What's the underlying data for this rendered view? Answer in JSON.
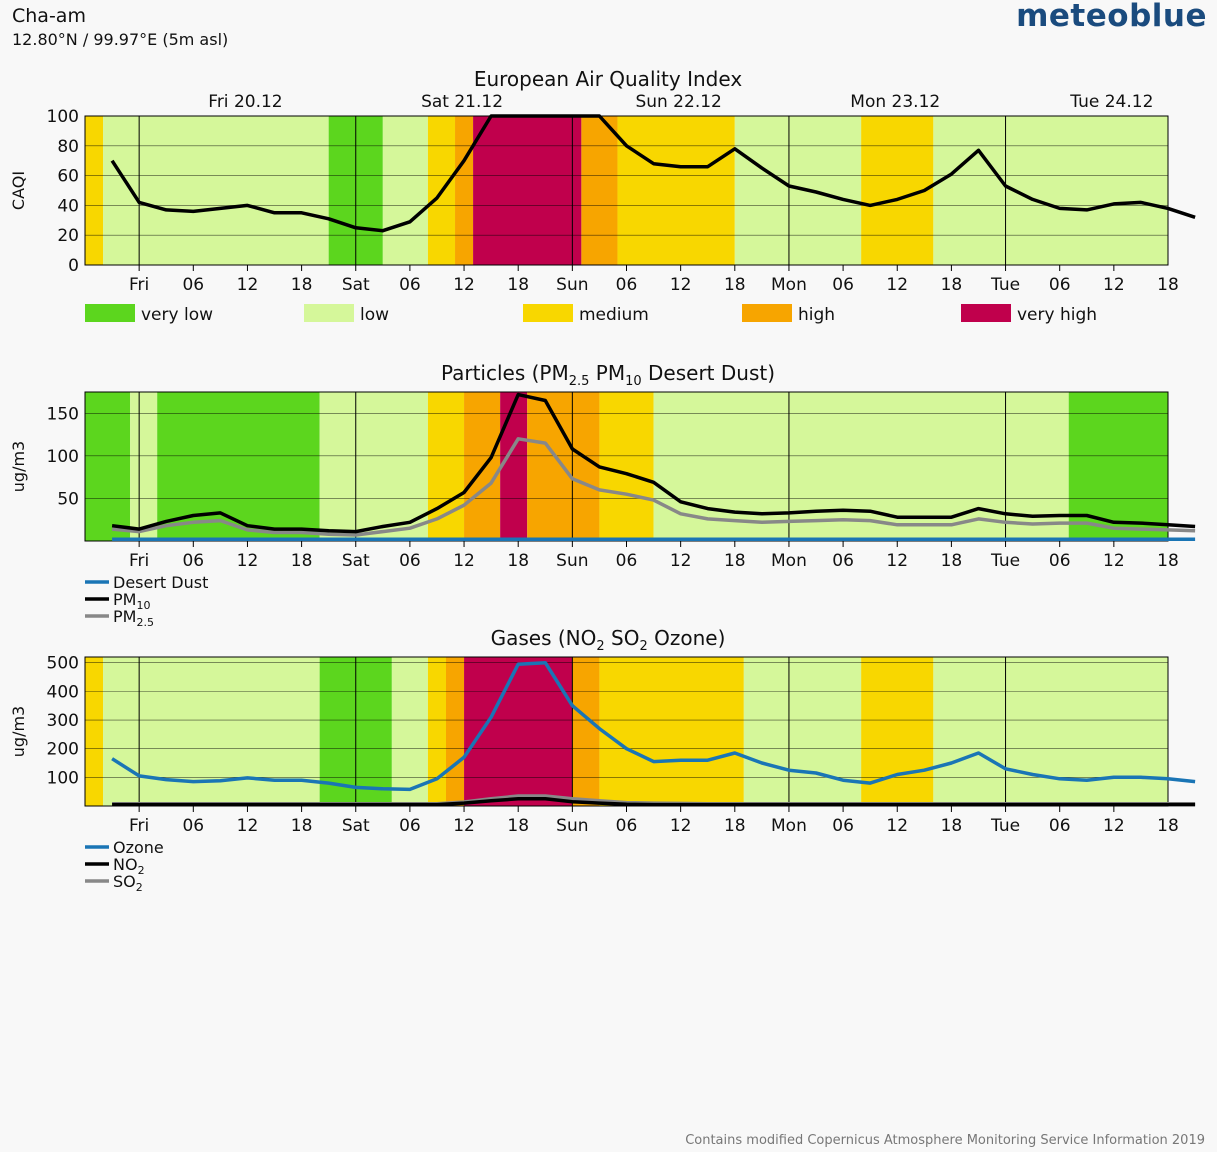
{
  "header": {
    "location_name": "Cha-am",
    "coords": "12.80°N / 99.97°E (5m asl)",
    "brand": "meteoblue"
  },
  "footer": {
    "credit": "Contains modified Copernicus Atmosphere Monitoring Service Information 2019"
  },
  "colors": {
    "very_low": "#5cd61e",
    "low": "#d5f79a",
    "medium": "#f8d700",
    "high": "#f7a500",
    "very_high": "#c0004c",
    "ozone": "#1a75b5",
    "black": "#000000",
    "grey": "#888888",
    "dust": "#1a75b5"
  },
  "day_labels": [
    "Fri 20.12",
    "Sat 21.12",
    "Sun 22.12",
    "Mon 23.12",
    "Tue 24.12"
  ],
  "x_tick_labels": [
    "Fri",
    "06",
    "12",
    "18",
    "Sat",
    "06",
    "12",
    "18",
    "Sun",
    "06",
    "12",
    "18",
    "Mon",
    "06",
    "12",
    "18",
    "Tue",
    "06",
    "12",
    "18"
  ],
  "legend_aqi": [
    "very low",
    "low",
    "medium",
    "high",
    "very high"
  ],
  "chart_data": [
    {
      "type": "line",
      "title": "European Air Quality Index",
      "ylabel": "CAQI",
      "ylim": [
        0,
        100
      ],
      "yticks": [
        0,
        20,
        40,
        60,
        80,
        100
      ],
      "x_hours": [
        -3,
        0,
        3,
        6,
        9,
        12,
        15,
        18,
        21,
        24,
        27,
        30,
        33,
        36,
        39,
        42,
        45,
        48,
        51,
        54,
        57,
        60,
        63,
        66,
        69,
        72,
        75,
        78,
        81,
        84,
        87,
        90,
        93,
        96,
        99,
        102,
        105,
        108,
        111,
        114,
        117
      ],
      "background_bands": [
        {
          "from": -6,
          "to": -4,
          "level": "medium"
        },
        {
          "from": -4,
          "to": 21,
          "level": "low"
        },
        {
          "from": 21,
          "to": 27,
          "level": "very_low"
        },
        {
          "from": 27,
          "to": 32,
          "level": "low"
        },
        {
          "from": 32,
          "to": 35,
          "level": "medium"
        },
        {
          "from": 35,
          "to": 37,
          "level": "high"
        },
        {
          "from": 37,
          "to": 49,
          "level": "very_high"
        },
        {
          "from": 49,
          "to": 53,
          "level": "high"
        },
        {
          "from": 53,
          "to": 66,
          "level": "medium"
        },
        {
          "from": 66,
          "to": 80,
          "level": "low"
        },
        {
          "from": 80,
          "to": 88,
          "level": "medium"
        },
        {
          "from": 88,
          "to": 114,
          "level": "low"
        }
      ],
      "series": [
        {
          "color": "black",
          "values": [
            null
          ]
        }
      ]
    },
    {
      "type": "line",
      "title": "Particles (PM2.5 PM10 Desert Dust)",
      "ylabel": "ug/m3",
      "ylim": [
        0,
        175
      ],
      "yticks": [
        50,
        100,
        150
      ],
      "legend": [
        "Desert Dust",
        "PM10",
        "PM2.5"
      ],
      "background_bands": [
        {
          "from": -6,
          "to": -1,
          "level": "very_low"
        },
        {
          "from": -1,
          "to": 2,
          "level": "low"
        },
        {
          "from": 2,
          "to": 20,
          "level": "very_low"
        },
        {
          "from": 20,
          "to": 32,
          "level": "low"
        },
        {
          "from": 32,
          "to": 36,
          "level": "medium"
        },
        {
          "from": 36,
          "to": 40,
          "level": "high"
        },
        {
          "from": 40,
          "to": 43,
          "level": "very_high"
        },
        {
          "from": 43,
          "to": 51,
          "level": "high"
        },
        {
          "from": 51,
          "to": 57,
          "level": "medium"
        },
        {
          "from": 57,
          "to": 103,
          "level": "low"
        },
        {
          "from": 103,
          "to": 114,
          "level": "very_low"
        }
      ]
    },
    {
      "type": "line",
      "title": "Gases (NO2 SO2 Ozone)",
      "ylabel": "ug/m3",
      "ylim": [
        0,
        520
      ],
      "yticks": [
        100,
        200,
        300,
        400,
        500
      ],
      "legend": [
        "Ozone",
        "NO2",
        "SO2"
      ],
      "background_bands": [
        {
          "from": -6,
          "to": -4,
          "level": "medium"
        },
        {
          "from": -4,
          "to": 20,
          "level": "low"
        },
        {
          "from": 20,
          "to": 28,
          "level": "very_low"
        },
        {
          "from": 28,
          "to": 32,
          "level": "low"
        },
        {
          "from": 32,
          "to": 34,
          "level": "medium"
        },
        {
          "from": 34,
          "to": 36,
          "level": "high"
        },
        {
          "from": 36,
          "to": 48,
          "level": "very_high"
        },
        {
          "from": 48,
          "to": 51,
          "level": "high"
        },
        {
          "from": 51,
          "to": 67,
          "level": "medium"
        },
        {
          "from": 67,
          "to": 80,
          "level": "low"
        },
        {
          "from": 80,
          "to": 88,
          "level": "medium"
        },
        {
          "from": 88,
          "to": 114,
          "level": "low"
        }
      ]
    }
  ],
  "series_values": {
    "caqi": [
      70,
      42,
      37,
      36,
      38,
      40,
      35,
      35,
      31,
      25,
      23,
      29,
      45,
      70,
      100,
      100,
      100,
      100,
      100,
      80,
      68,
      66,
      66,
      78,
      65,
      53,
      49,
      44,
      40,
      44,
      50,
      61,
      77,
      53,
      44,
      38,
      37,
      41,
      42,
      38,
      32
    ],
    "pm10": [
      18,
      14,
      23,
      30,
      33,
      18,
      14,
      14,
      12,
      11,
      17,
      22,
      38,
      57,
      98,
      172,
      165,
      108,
      87,
      79,
      69,
      46,
      38,
      34,
      32,
      33,
      35,
      36,
      35,
      28,
      28,
      28,
      38,
      32,
      29,
      30,
      30,
      22,
      21,
      19,
      17
    ],
    "pm25": [
      14,
      11,
      18,
      22,
      24,
      13,
      10,
      10,
      8,
      7,
      11,
      15,
      26,
      42,
      68,
      120,
      115,
      73,
      60,
      55,
      48,
      32,
      26,
      24,
      22,
      23,
      24,
      25,
      24,
      19,
      19,
      19,
      26,
      22,
      20,
      21,
      21,
      15,
      14,
      13,
      12
    ],
    "dust": [
      2,
      2,
      2,
      2,
      2,
      2,
      2,
      2,
      2,
      2,
      2,
      2,
      2,
      2,
      2,
      2,
      2,
      2,
      2,
      2,
      2,
      2,
      2,
      2,
      2,
      2,
      2,
      2,
      2,
      2,
      2,
      2,
      2,
      2,
      2,
      2,
      2,
      2,
      2,
      2,
      2
    ],
    "ozone": [
      165,
      105,
      92,
      85,
      88,
      98,
      90,
      90,
      80,
      65,
      60,
      58,
      95,
      170,
      310,
      495,
      500,
      350,
      270,
      200,
      155,
      160,
      160,
      185,
      150,
      125,
      115,
      90,
      80,
      110,
      125,
      150,
      185,
      130,
      110,
      95,
      90,
      100,
      100,
      95,
      85
    ],
    "no2": [
      5,
      5,
      5,
      5,
      5,
      5,
      5,
      5,
      5,
      5,
      5,
      5,
      5,
      10,
      18,
      25,
      25,
      15,
      10,
      6,
      5,
      5,
      5,
      5,
      5,
      5,
      5,
      5,
      5,
      5,
      5,
      5,
      5,
      5,
      5,
      5,
      5,
      5,
      5,
      5,
      5
    ],
    "so2": [
      8,
      8,
      8,
      8,
      8,
      8,
      8,
      8,
      8,
      8,
      8,
      8,
      8,
      14,
      25,
      35,
      35,
      25,
      18,
      12,
      10,
      9,
      8,
      8,
      8,
      8,
      8,
      8,
      8,
      8,
      8,
      8,
      8,
      8,
      8,
      8,
      8,
      8,
      8,
      8,
      8
    ]
  }
}
